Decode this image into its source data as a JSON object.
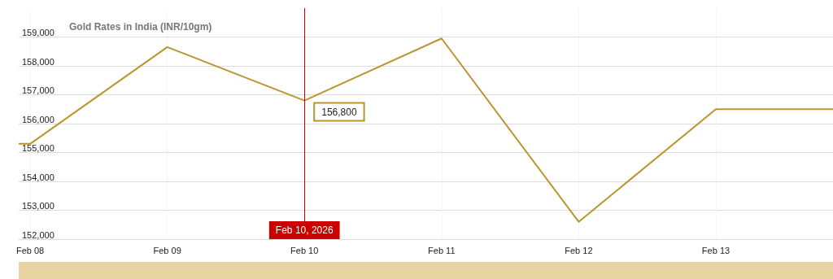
{
  "chart_data": {
    "type": "line",
    "title": "Gold Rates in India (INR/10gm)",
    "x": [
      "2026-02-07T22:00",
      "2026-02-08",
      "2026-02-09",
      "2026-02-10",
      "2026-02-11",
      "2026-02-12",
      "2026-02-13",
      "2026-02-13T20:30"
    ],
    "series": [
      {
        "color": "#b8962e",
        "values": [
          155300,
          155300,
          158650,
          156800,
          158950,
          152600,
          156500,
          156500
        ]
      }
    ],
    "xlim": [
      "2026-02-07T22:00",
      "2026-02-13T20:30"
    ],
    "xticks": [
      {
        "value": "2026-02-08",
        "label": "Feb 08"
      },
      {
        "value": "2026-02-09",
        "label": "Feb 09"
      },
      {
        "value": "2026-02-10",
        "label": "Feb 10"
      },
      {
        "value": "2026-02-11",
        "label": "Feb 11"
      },
      {
        "value": "2026-02-12",
        "label": "Feb 12"
      },
      {
        "value": "2026-02-13",
        "label": "Feb 13"
      }
    ],
    "ylim": [
      152000,
      160000
    ],
    "yticks": [
      {
        "value": 152000,
        "label": "152,000"
      },
      {
        "value": 153000,
        "label": "153,000"
      },
      {
        "value": 154000,
        "label": "154,000"
      },
      {
        "value": 155000,
        "label": "155,000"
      },
      {
        "value": 156000,
        "label": "156,000"
      },
      {
        "value": 157000,
        "label": "157,000"
      },
      {
        "value": 158000,
        "label": "158,000"
      },
      {
        "value": 159000,
        "label": "159,000"
      }
    ],
    "ref_lines": [
      {
        "axis": "x",
        "value": "2026-02-10",
        "label": "Feb 10, 2026",
        "color": "#cc0000"
      }
    ],
    "annotations": [
      {
        "text": "156,800",
        "x": "2026-02-10",
        "y": 156800
      }
    ],
    "grid": true,
    "marker": "none",
    "line_style": "solid"
  }
}
